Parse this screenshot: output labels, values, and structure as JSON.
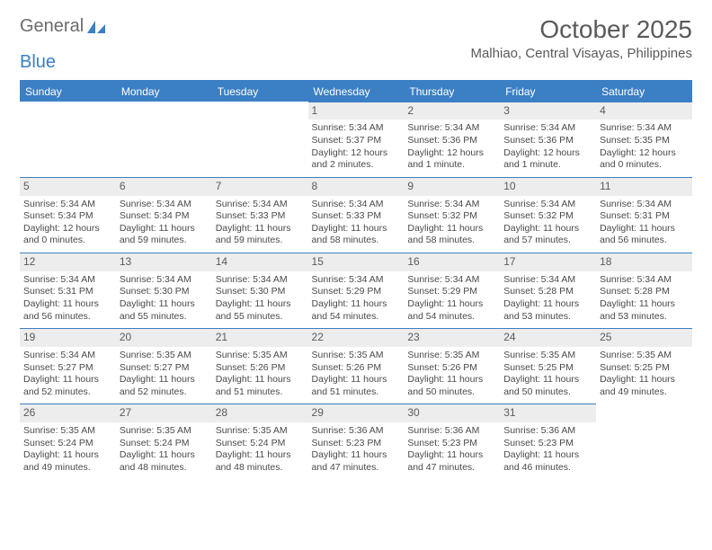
{
  "brand": {
    "part1": "General",
    "part2": "Blue"
  },
  "title": "October 2025",
  "location": "Malhiao, Central Visayas, Philippines",
  "colors": {
    "accent": "#3b7fc4",
    "header_bg": "#3b7fc4",
    "daynum_bg": "#ededed",
    "text": "#4a4a4a"
  },
  "weekdays": [
    "Sunday",
    "Monday",
    "Tuesday",
    "Wednesday",
    "Thursday",
    "Friday",
    "Saturday"
  ],
  "weeks": [
    [
      null,
      null,
      null,
      {
        "d": "1",
        "sr": "Sunrise: 5:34 AM",
        "ss": "Sunset: 5:37 PM",
        "dl": "Daylight: 12 hours and 2 minutes."
      },
      {
        "d": "2",
        "sr": "Sunrise: 5:34 AM",
        "ss": "Sunset: 5:36 PM",
        "dl": "Daylight: 12 hours and 1 minute."
      },
      {
        "d": "3",
        "sr": "Sunrise: 5:34 AM",
        "ss": "Sunset: 5:36 PM",
        "dl": "Daylight: 12 hours and 1 minute."
      },
      {
        "d": "4",
        "sr": "Sunrise: 5:34 AM",
        "ss": "Sunset: 5:35 PM",
        "dl": "Daylight: 12 hours and 0 minutes."
      }
    ],
    [
      {
        "d": "5",
        "sr": "Sunrise: 5:34 AM",
        "ss": "Sunset: 5:34 PM",
        "dl": "Daylight: 12 hours and 0 minutes."
      },
      {
        "d": "6",
        "sr": "Sunrise: 5:34 AM",
        "ss": "Sunset: 5:34 PM",
        "dl": "Daylight: 11 hours and 59 minutes."
      },
      {
        "d": "7",
        "sr": "Sunrise: 5:34 AM",
        "ss": "Sunset: 5:33 PM",
        "dl": "Daylight: 11 hours and 59 minutes."
      },
      {
        "d": "8",
        "sr": "Sunrise: 5:34 AM",
        "ss": "Sunset: 5:33 PM",
        "dl": "Daylight: 11 hours and 58 minutes."
      },
      {
        "d": "9",
        "sr": "Sunrise: 5:34 AM",
        "ss": "Sunset: 5:32 PM",
        "dl": "Daylight: 11 hours and 58 minutes."
      },
      {
        "d": "10",
        "sr": "Sunrise: 5:34 AM",
        "ss": "Sunset: 5:32 PM",
        "dl": "Daylight: 11 hours and 57 minutes."
      },
      {
        "d": "11",
        "sr": "Sunrise: 5:34 AM",
        "ss": "Sunset: 5:31 PM",
        "dl": "Daylight: 11 hours and 56 minutes."
      }
    ],
    [
      {
        "d": "12",
        "sr": "Sunrise: 5:34 AM",
        "ss": "Sunset: 5:31 PM",
        "dl": "Daylight: 11 hours and 56 minutes."
      },
      {
        "d": "13",
        "sr": "Sunrise: 5:34 AM",
        "ss": "Sunset: 5:30 PM",
        "dl": "Daylight: 11 hours and 55 minutes."
      },
      {
        "d": "14",
        "sr": "Sunrise: 5:34 AM",
        "ss": "Sunset: 5:30 PM",
        "dl": "Daylight: 11 hours and 55 minutes."
      },
      {
        "d": "15",
        "sr": "Sunrise: 5:34 AM",
        "ss": "Sunset: 5:29 PM",
        "dl": "Daylight: 11 hours and 54 minutes."
      },
      {
        "d": "16",
        "sr": "Sunrise: 5:34 AM",
        "ss": "Sunset: 5:29 PM",
        "dl": "Daylight: 11 hours and 54 minutes."
      },
      {
        "d": "17",
        "sr": "Sunrise: 5:34 AM",
        "ss": "Sunset: 5:28 PM",
        "dl": "Daylight: 11 hours and 53 minutes."
      },
      {
        "d": "18",
        "sr": "Sunrise: 5:34 AM",
        "ss": "Sunset: 5:28 PM",
        "dl": "Daylight: 11 hours and 53 minutes."
      }
    ],
    [
      {
        "d": "19",
        "sr": "Sunrise: 5:34 AM",
        "ss": "Sunset: 5:27 PM",
        "dl": "Daylight: 11 hours and 52 minutes."
      },
      {
        "d": "20",
        "sr": "Sunrise: 5:35 AM",
        "ss": "Sunset: 5:27 PM",
        "dl": "Daylight: 11 hours and 52 minutes."
      },
      {
        "d": "21",
        "sr": "Sunrise: 5:35 AM",
        "ss": "Sunset: 5:26 PM",
        "dl": "Daylight: 11 hours and 51 minutes."
      },
      {
        "d": "22",
        "sr": "Sunrise: 5:35 AM",
        "ss": "Sunset: 5:26 PM",
        "dl": "Daylight: 11 hours and 51 minutes."
      },
      {
        "d": "23",
        "sr": "Sunrise: 5:35 AM",
        "ss": "Sunset: 5:26 PM",
        "dl": "Daylight: 11 hours and 50 minutes."
      },
      {
        "d": "24",
        "sr": "Sunrise: 5:35 AM",
        "ss": "Sunset: 5:25 PM",
        "dl": "Daylight: 11 hours and 50 minutes."
      },
      {
        "d": "25",
        "sr": "Sunrise: 5:35 AM",
        "ss": "Sunset: 5:25 PM",
        "dl": "Daylight: 11 hours and 49 minutes."
      }
    ],
    [
      {
        "d": "26",
        "sr": "Sunrise: 5:35 AM",
        "ss": "Sunset: 5:24 PM",
        "dl": "Daylight: 11 hours and 49 minutes."
      },
      {
        "d": "27",
        "sr": "Sunrise: 5:35 AM",
        "ss": "Sunset: 5:24 PM",
        "dl": "Daylight: 11 hours and 48 minutes."
      },
      {
        "d": "28",
        "sr": "Sunrise: 5:35 AM",
        "ss": "Sunset: 5:24 PM",
        "dl": "Daylight: 11 hours and 48 minutes."
      },
      {
        "d": "29",
        "sr": "Sunrise: 5:36 AM",
        "ss": "Sunset: 5:23 PM",
        "dl": "Daylight: 11 hours and 47 minutes."
      },
      {
        "d": "30",
        "sr": "Sunrise: 5:36 AM",
        "ss": "Sunset: 5:23 PM",
        "dl": "Daylight: 11 hours and 47 minutes."
      },
      {
        "d": "31",
        "sr": "Sunrise: 5:36 AM",
        "ss": "Sunset: 5:23 PM",
        "dl": "Daylight: 11 hours and 46 minutes."
      },
      null
    ]
  ]
}
